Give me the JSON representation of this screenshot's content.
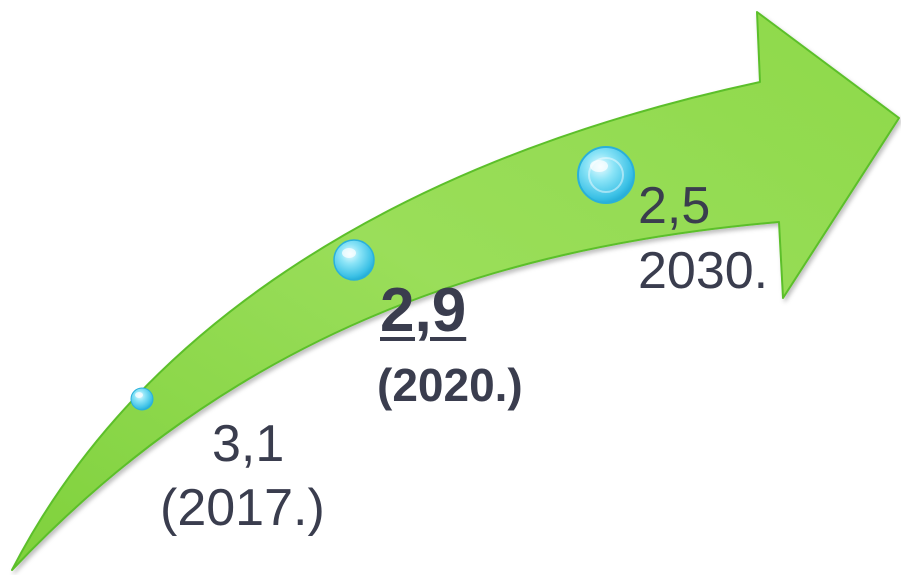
{
  "points": [
    {
      "value": "3,1",
      "year": "(2017.)",
      "emphasis": false
    },
    {
      "value": "2,9",
      "year": "(2020.)",
      "emphasis": true
    },
    {
      "value": "2,5",
      "year": "2030.",
      "emphasis": false
    }
  ],
  "colors": {
    "arrow_fill": "#8fd94f",
    "arrow_edge": "#5bbf2a",
    "bubble": "#5fd3ef",
    "text": "#3a3d4e"
  }
}
